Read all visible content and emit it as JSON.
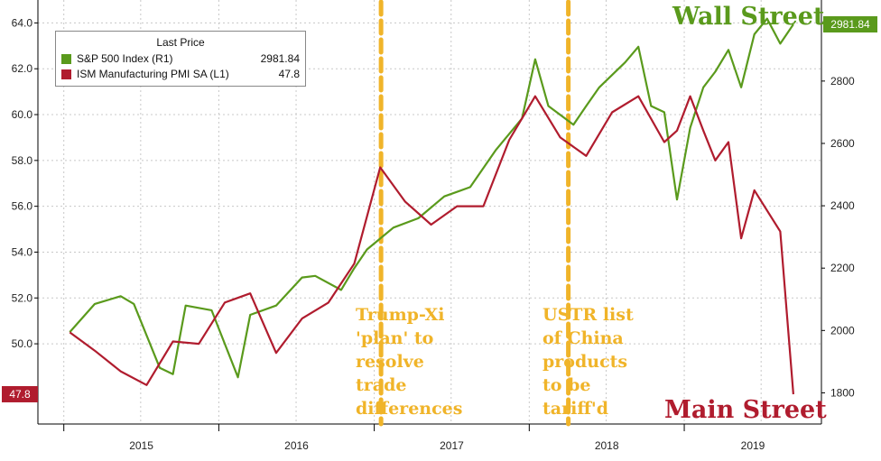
{
  "chart_data": {
    "type": "line",
    "left_axis": {
      "ticks": [
        "64.0",
        "62.0",
        "60.0",
        "58.0",
        "56.0",
        "54.0",
        "52.0",
        "50.0"
      ],
      "ylim": [
        46.5,
        65.0
      ]
    },
    "right_axis": {
      "ticks": [
        "2800",
        "2600",
        "2400",
        "2200",
        "2000",
        "1800"
      ],
      "ylim": [
        1700,
        3060
      ]
    },
    "x_labels": [
      "2015",
      "2016",
      "2017",
      "2018",
      "2019"
    ],
    "legend": {
      "header": "Last Price",
      "items": [
        {
          "name": "S&P 500 Index  (R1)",
          "value": "2981.84",
          "color": "#5a9a1c"
        },
        {
          "name": "ISM Manufacturing PMI SA  (L1)",
          "value": "47.8",
          "color": "#b01c2e"
        }
      ]
    },
    "series": [
      {
        "name": "ISM Manufacturing PMI SA  (L1)",
        "axis": "left",
        "color": "#b01c2e",
        "x": [
          "2015-01",
          "2015-03",
          "2015-05",
          "2015-07",
          "2015-09",
          "2015-11",
          "2016-01",
          "2016-03",
          "2016-05",
          "2016-07",
          "2016-09",
          "2016-11",
          "2017-01",
          "2017-03",
          "2017-05",
          "2017-07",
          "2017-09",
          "2017-11",
          "2018-01",
          "2018-03",
          "2018-05",
          "2018-07",
          "2018-09",
          "2018-11",
          "2018-12",
          "2019-01",
          "2019-02",
          "2019-03",
          "2019-04",
          "2019-05",
          "2019-06",
          "2019-08",
          "2019-09"
        ],
        "y": [
          50.5,
          49.7,
          48.8,
          48.2,
          50.1,
          50.0,
          51.8,
          52.2,
          49.6,
          51.1,
          51.8,
          53.5,
          57.7,
          56.2,
          55.2,
          56.0,
          56.0,
          58.9,
          60.8,
          59.0,
          58.2,
          60.1,
          60.8,
          58.8,
          59.3,
          60.8,
          59.3,
          58.0,
          58.8,
          54.6,
          56.7,
          54.9,
          47.8
        ]
      },
      {
        "name": "S&P 500 Index  (R1)",
        "axis": "right",
        "color": "#5a9a1c",
        "x": [
          "2015-01",
          "2015-03",
          "2015-05",
          "2015-06",
          "2015-08",
          "2015-09",
          "2015-10",
          "2015-12",
          "2016-02",
          "2016-03",
          "2016-05",
          "2016-07",
          "2016-08",
          "2016-10",
          "2016-11",
          "2016-12",
          "2017-02",
          "2017-04",
          "2017-06",
          "2017-08",
          "2017-10",
          "2017-12",
          "2018-01",
          "2018-02",
          "2018-04",
          "2018-05",
          "2018-06",
          "2018-08",
          "2018-09",
          "2018-10",
          "2018-11",
          "2018-12",
          "2019-01",
          "2019-02",
          "2019-03",
          "2019-04",
          "2019-05",
          "2019-06",
          "2019-07",
          "2019-08",
          "2019-09"
        ],
        "y": [
          1995,
          2085,
          2110,
          2085,
          1880,
          1860,
          2080,
          2065,
          1850,
          2050,
          2080,
          2170,
          2175,
          2130,
          2200,
          2260,
          2330,
          2360,
          2430,
          2460,
          2580,
          2680,
          2870,
          2720,
          2660,
          2720,
          2780,
          2860,
          2910,
          2720,
          2700,
          2420,
          2650,
          2780,
          2830,
          2900,
          2780,
          2950,
          3000,
          2920,
          2981.84
        ]
      }
    ],
    "annotations": [
      {
        "text": [
          "Trump-Xi",
          "'plan' to",
          "resolve",
          "trade",
          "differences"
        ],
        "date": "2017-01-17",
        "color": "#f0b429"
      },
      {
        "text": [
          "USTR list",
          "of China",
          "products",
          "to be",
          "tariff'd"
        ],
        "date": "2018-04-03",
        "color": "#f0b429"
      }
    ],
    "last_value_tags": [
      {
        "text": "47.8",
        "axis": "left",
        "color": "#b01c2e"
      },
      {
        "text": "2981.84",
        "axis": "right",
        "color": "#5a9a1c"
      }
    ],
    "titles": [
      {
        "text": "Wall Street",
        "color": "#5a9a1c"
      },
      {
        "text": "Main Street",
        "color": "#b01c2e"
      }
    ],
    "grid": true
  }
}
